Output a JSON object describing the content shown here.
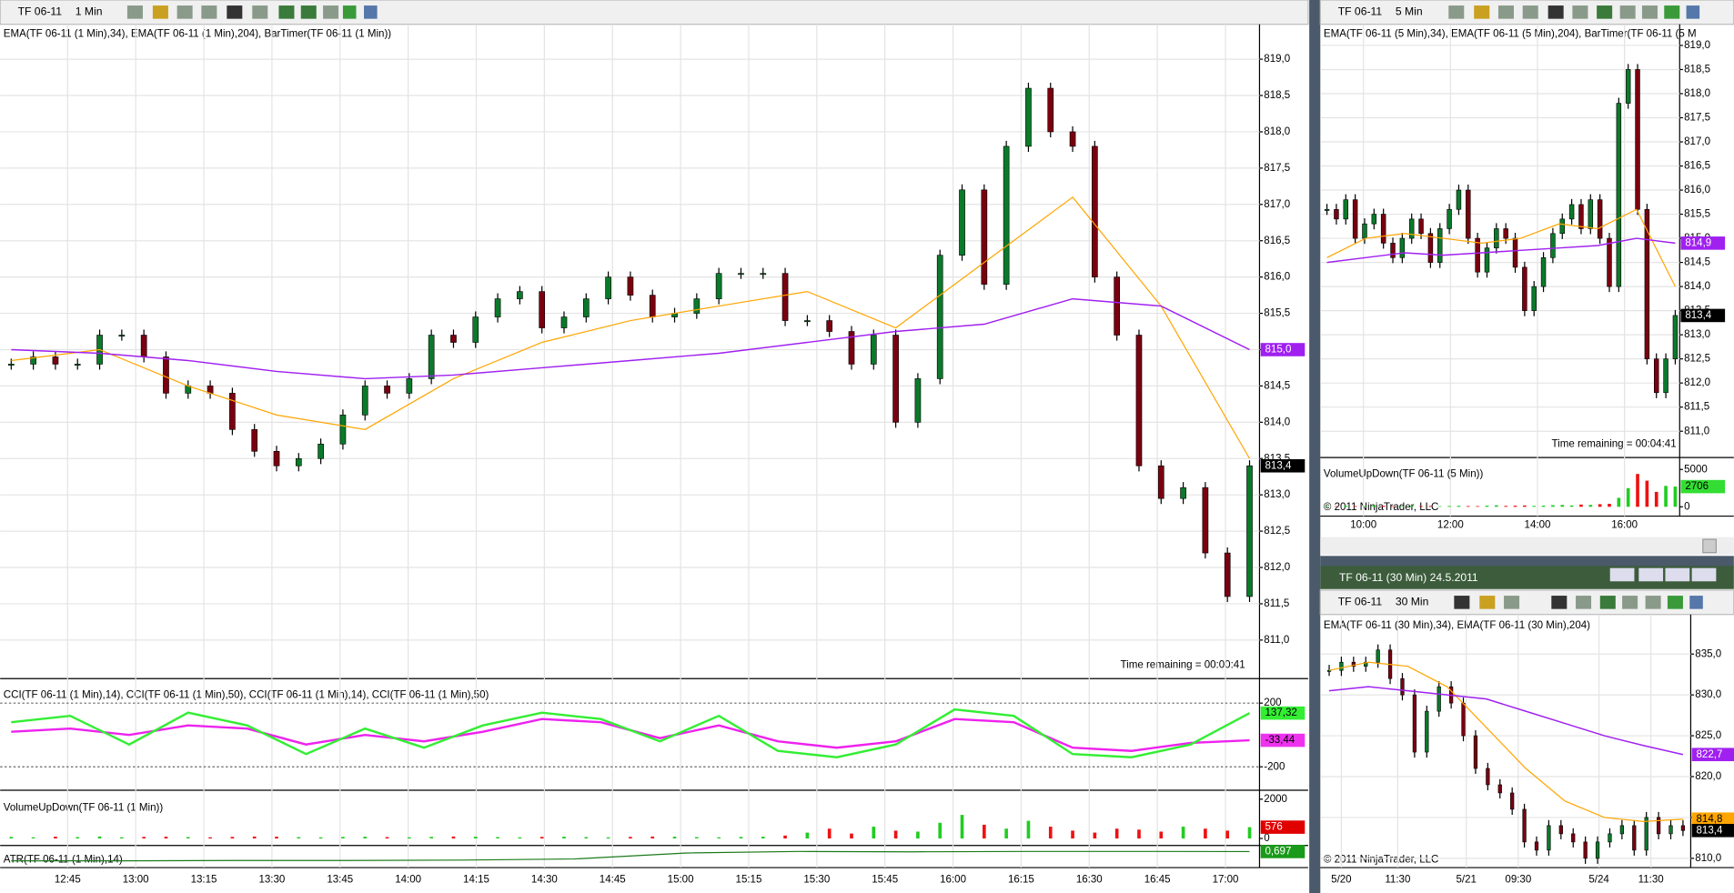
{
  "main": {
    "toolbar": {
      "instrument": "TF 06-11",
      "interval": "1 Min"
    },
    "indicator_label": "EMA(TF 06-11 (1 Min),34), EMA(TF 06-11 (1 Min),204), BarTimer(TF 06-11 (1 Min))",
    "ylim": [
      810.5,
      819.45
    ],
    "yticks": [
      {
        "value": 811,
        "label": "811,0"
      },
      {
        "value": 811.5,
        "label": "811,5"
      },
      {
        "value": 812,
        "label": "812,0"
      },
      {
        "value": 812.5,
        "label": "812,5"
      },
      {
        "value": 813,
        "label": "813,0"
      },
      {
        "value": 813.5,
        "label": "813,5"
      },
      {
        "value": 814,
        "label": "814,0"
      },
      {
        "value": 814.5,
        "label": "814,5"
      },
      {
        "value": 815,
        "label": "815,0"
      },
      {
        "value": 815.5,
        "label": "815,5"
      },
      {
        "value": 816,
        "label": "816,0"
      },
      {
        "value": 816.5,
        "label": "816,5"
      },
      {
        "value": 817,
        "label": "817,0"
      },
      {
        "value": 817.5,
        "label": "817,5"
      },
      {
        "value": 818,
        "label": "818,0"
      },
      {
        "value": 818.5,
        "label": "818,5"
      },
      {
        "value": 819,
        "label": "819,0"
      }
    ],
    "closes": [
      814.8,
      814.9,
      814.8,
      814.8,
      815.2,
      815.2,
      814.9,
      814.4,
      814.5,
      814.4,
      813.9,
      813.6,
      813.4,
      813.5,
      813.7,
      814.1,
      814.5,
      814.4,
      814.6,
      815.2,
      815.1,
      815.45,
      815.7,
      815.8,
      815.3,
      815.45,
      815.7,
      816.0,
      815.75,
      815.45,
      815.5,
      815.7,
      816.05,
      816.05,
      816.05,
      815.4,
      815.4,
      815.25,
      814.8,
      815.2,
      814.0,
      814.6,
      816.3,
      817.2,
      815.9,
      817.8,
      818.6,
      818.0,
      817.8,
      816.0,
      815.2,
      813.4,
      812.95,
      813.1,
      812.2,
      811.6,
      813.4
    ],
    "ema34": [
      814.85,
      815.0,
      814.5,
      814.1,
      813.9,
      814.6,
      815.1,
      815.4,
      815.6,
      815.8,
      815.3,
      816.2,
      817.1,
      815.6,
      813.5
    ],
    "ema204": [
      815.0,
      814.95,
      814.85,
      814.7,
      814.6,
      814.65,
      814.75,
      814.85,
      814.95,
      815.1,
      815.25,
      815.35,
      815.7,
      815.6,
      815.0
    ],
    "badges": [
      {
        "value": 815.0,
        "label": "815,0",
        "color": "#a020f0"
      },
      {
        "value": 813.4,
        "label": "813,4",
        "color": "#000000"
      }
    ],
    "time_remaining": "Time remaining = 00:00:41",
    "time_labels": [
      "12:45",
      "13:00",
      "13:15",
      "13:30",
      "13:45",
      "14:00",
      "14:15",
      "14:30",
      "14:45",
      "15:00",
      "15:15",
      "15:30",
      "15:45",
      "16:00",
      "16:15",
      "16:30",
      "16:45",
      "17:00"
    ],
    "cci": {
      "label": "CCI(TF 06-11 (1 Min),14), CCI(TF 06-11 (1 Min),50), CCI(TF 06-11 (1 Min),14), CCI(TF 06-11 (1 Min),50)",
      "ylim": [
        -340,
        340
      ],
      "yticks": [
        200,
        -200
      ],
      "cci14": [
        80,
        120,
        -60,
        140,
        60,
        -120,
        40,
        -80,
        60,
        140,
        100,
        -40,
        120,
        -100,
        -140,
        -60,
        160,
        120,
        -120,
        -140,
        -60,
        137.32
      ],
      "cci50": [
        20,
        40,
        0,
        60,
        40,
        -60,
        0,
        -40,
        20,
        100,
        80,
        -20,
        60,
        -40,
        -80,
        -40,
        100,
        80,
        -80,
        -100,
        -50,
        -33.44
      ],
      "badges": [
        {
          "value": 137.32,
          "label": "137,32",
          "color": "#33ee33"
        },
        {
          "value": -33.44,
          "label": "-33,44",
          "color": "#ee33ee"
        }
      ]
    },
    "volume": {
      "label": "VolumeUpDown(TF 06-11 (1 Min))",
      "ylim": [
        -300,
        2400
      ],
      "yticks": [
        2000,
        0
      ],
      "values": [
        80,
        60,
        90,
        70,
        100,
        60,
        80,
        90,
        70,
        60,
        80,
        100,
        90,
        70,
        60,
        80,
        90,
        70,
        60,
        80,
        100,
        90,
        70,
        60,
        80,
        90,
        70,
        60,
        80,
        100,
        90,
        70,
        60,
        80,
        90,
        150,
        300,
        500,
        250,
        600,
        400,
        350,
        800,
        1200,
        700,
        500,
        900,
        600,
        400,
        300,
        500,
        450,
        350,
        600,
        500,
        400,
        576
      ],
      "badges": [
        {
          "value": 576,
          "label": "576",
          "color": "#e00000"
        }
      ]
    },
    "atr": {
      "label": "ATR(TF 06-11 (1 Min),14)",
      "ylim": [
        0.3,
        0.8
      ],
      "values": [
        0.45,
        0.45,
        0.46,
        0.46,
        0.47,
        0.5,
        0.66,
        0.7,
        0.69,
        0.7,
        0.7,
        0.697
      ],
      "badges": [
        {
          "value": 0.697,
          "label": "0,697",
          "color": "#1a9a1a"
        }
      ]
    }
  },
  "five_min": {
    "toolbar": {
      "instrument": "TF 06-11",
      "interval": "5 Min"
    },
    "indicator_label": "EMA(TF 06-11 (5 Min),34), EMA(TF 06-11 (5 Min),204), BarTimer(TF 06-11 (5 M",
    "ylim": [
      810.5,
      819.3
    ],
    "yticks": [
      {
        "value": 811,
        "label": "811,0"
      },
      {
        "value": 811.5,
        "label": "811,5"
      },
      {
        "value": 812,
        "label": "812,0"
      },
      {
        "value": 812.5,
        "label": "812,5"
      },
      {
        "value": 813,
        "label": "813,0"
      },
      {
        "value": 813.5,
        "label": "813,5"
      },
      {
        "value": 814,
        "label": "814,0"
      },
      {
        "value": 814.5,
        "label": "814,5"
      },
      {
        "value": 815,
        "label": "815,0"
      },
      {
        "value": 815.5,
        "label": "815,5"
      },
      {
        "value": 816,
        "label": "816,0"
      },
      {
        "value": 816.5,
        "label": "816,5"
      },
      {
        "value": 817,
        "label": "817,0"
      },
      {
        "value": 817.5,
        "label": "817,5"
      },
      {
        "value": 818,
        "label": "818,0"
      },
      {
        "value": 818.5,
        "label": "818,5"
      },
      {
        "value": 819,
        "label": "819,0"
      }
    ],
    "closes": [
      815.6,
      815.4,
      815.8,
      815.0,
      815.3,
      815.5,
      814.9,
      814.6,
      815.0,
      815.4,
      815.1,
      814.5,
      815.2,
      815.6,
      816.0,
      815.0,
      814.3,
      814.8,
      815.2,
      815.0,
      814.4,
      813.5,
      814.0,
      814.6,
      815.1,
      815.4,
      815.7,
      815.2,
      815.8,
      815.0,
      814.0,
      817.8,
      818.5,
      815.6,
      812.5,
      811.8,
      812.5,
      813.4
    ],
    "ema34": [
      814.6,
      815.0,
      815.1,
      815.0,
      814.9,
      815.0,
      815.3,
      815.2,
      815.6,
      814.0
    ],
    "ema204": [
      814.5,
      814.6,
      814.7,
      814.65,
      814.7,
      814.75,
      814.8,
      814.85,
      815.0,
      814.9
    ],
    "badges": [
      {
        "value": 814.9,
        "label": "814,9",
        "color": "#a020f0"
      },
      {
        "value": 813.4,
        "label": "813,4",
        "color": "#000000"
      }
    ],
    "time_remaining": "Time remaining = 00:04:41",
    "time_labels": [
      "10:00",
      "12:00",
      "14:00",
      "16:00"
    ],
    "volume": {
      "label": "VolumeUpDown(TF 06-11 (5 Min))",
      "ylim": [
        -1100,
        6300
      ],
      "yticks": [
        5000,
        0
      ],
      "values": [
        120,
        80,
        150,
        100,
        90,
        200,
        130,
        80,
        100,
        150,
        90,
        120,
        80,
        110,
        140,
        100,
        90,
        160,
        200,
        120,
        150,
        180,
        130,
        160,
        220,
        250,
        180,
        300,
        260,
        350,
        400,
        1200,
        2500,
        4400,
        3500,
        2000,
        2800,
        2706
      ],
      "badges": [
        {
          "value": 2706,
          "label": "2706",
          "color": "#33dd33"
        }
      ]
    },
    "copyright": "© 2011 NinjaTrader, LLC"
  },
  "thirty_min": {
    "window_title": "TF 06-11 (30 Min)  24.5.2011",
    "toolbar": {
      "instrument": "TF 06-11",
      "interval": "30 Min"
    },
    "indicator_label": "EMA(TF 06-11 (30 Min),34), EMA(TF 06-11 (30 Min),204)",
    "ylim": [
      809,
      839.3
    ],
    "yticks": [
      {
        "value": 810,
        "label": "810,0"
      },
      {
        "value": 815,
        "label": "815,0"
      },
      {
        "value": 820,
        "label": "820,0"
      },
      {
        "value": 825,
        "label": "825,0"
      },
      {
        "value": 830,
        "label": "830,0"
      },
      {
        "value": 835,
        "label": "835,0"
      }
    ],
    "closes": [
      833,
      834,
      833.5,
      834,
      835.5,
      832,
      830,
      823,
      828,
      831,
      829,
      825,
      821,
      819,
      818,
      816,
      812,
      811,
      814,
      813,
      812,
      810,
      812,
      813,
      814,
      811,
      815,
      813,
      814,
      813.4
    ],
    "ema34": [
      833,
      834,
      833.5,
      831,
      826,
      821,
      817,
      815,
      814.5,
      814.8
    ],
    "ema204": [
      830.5,
      831,
      830.5,
      830,
      829.5,
      828,
      826.5,
      825,
      823.8,
      822.7
    ],
    "badges": [
      {
        "value": 822.7,
        "label": "822,7",
        "color": "#a020f0"
      },
      {
        "value": 814.8,
        "label": "814,8",
        "color": "#ffa500"
      },
      {
        "value": 813.4,
        "label": "813,4",
        "color": "#000000"
      }
    ],
    "time_labels": [
      "5/20",
      "11:30",
      "5/21",
      "09:30",
      "5/24",
      "11:30"
    ],
    "copyright": "© 2011 NinjaTrader, LLC"
  }
}
